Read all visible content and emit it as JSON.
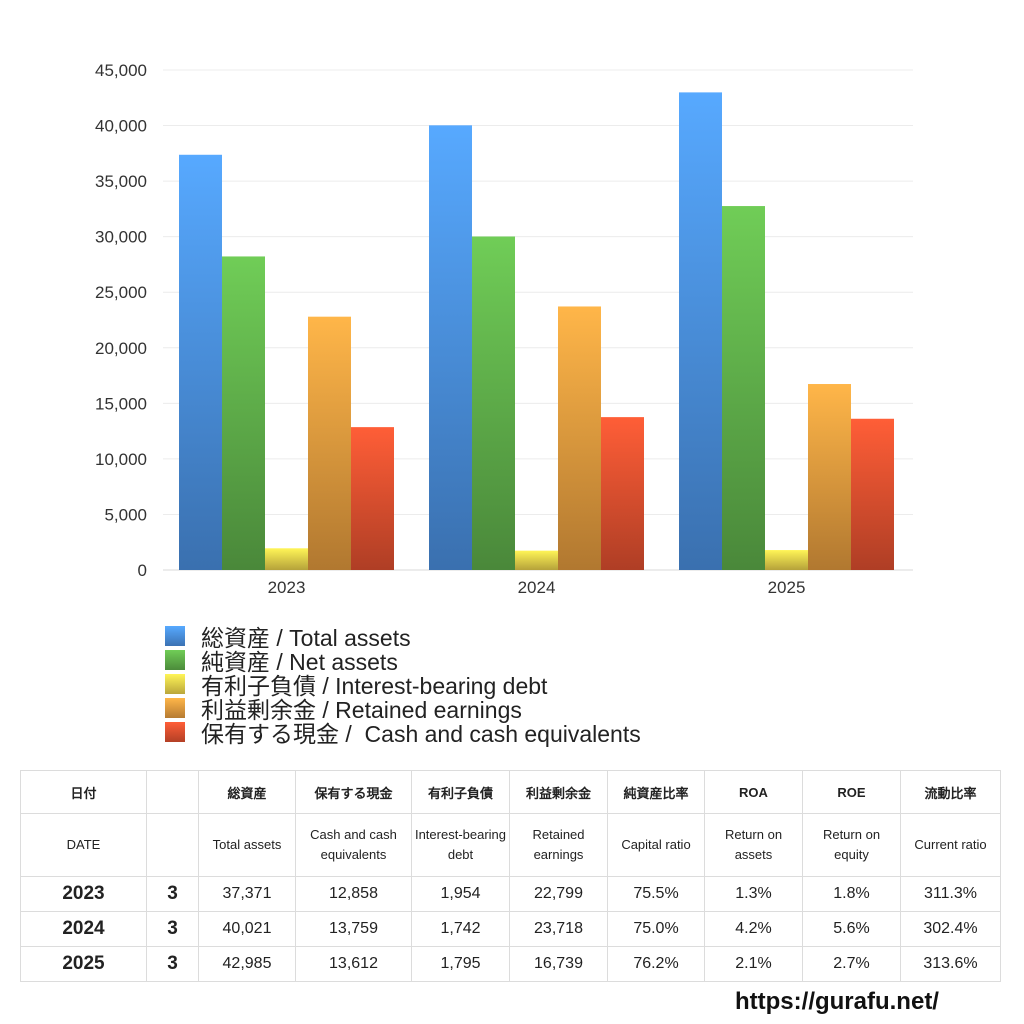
{
  "chart_data": {
    "type": "bar",
    "categories": [
      "2023",
      "2024",
      "2025"
    ],
    "ylim": [
      0,
      45000
    ],
    "yticks": [
      "45,000",
      "40,000",
      "35,000",
      "30,000",
      "25,000",
      "20,000",
      "15,000",
      "10,000",
      "5,000",
      "0"
    ],
    "series": [
      {
        "name": "総資産 / Total assets",
        "color": "#4a8fe0",
        "values": [
          37371,
          40021,
          42985
        ]
      },
      {
        "name": "純資産 / Net assets",
        "color": "#5fae4a",
        "values": [
          28220,
          30015,
          32755
        ]
      },
      {
        "name": "有利子負債 / Interest-bearing debt",
        "color": "#e8d04a",
        "values": [
          1954,
          1742,
          1795
        ]
      },
      {
        "name": "利益剰余金 / Retained earnings",
        "color": "#e39a3e",
        "values": [
          22799,
          23718,
          16739
        ]
      },
      {
        "name": "保有する現金 /  Cash and cash equivalents",
        "color": "#e0502f",
        "values": [
          12858,
          13759,
          13612
        ]
      }
    ],
    "legend_position": "bottom",
    "grid": true
  },
  "table": {
    "header_jp": [
      "日付",
      "",
      "総資産",
      "保有する現金",
      "有利子負債",
      "利益剰余金",
      "純資産比率",
      "ROA",
      "ROE",
      "流動比率"
    ],
    "header_en": [
      "DATE",
      "",
      "Total assets",
      "Cash and cash equivalents",
      "Interest-bearing debt",
      "Retained earnings",
      "Capital ratio",
      "Return on assets",
      "Return on equity",
      "Current ratio"
    ],
    "rows": [
      [
        "2023",
        "3",
        "37,371",
        "12,858",
        "1,954",
        "22,799",
        "75.5%",
        "1.3%",
        "1.8%",
        "311.3%"
      ],
      [
        "2024",
        "3",
        "40,021",
        "13,759",
        "1,742",
        "23,718",
        "75.0%",
        "4.2%",
        "5.6%",
        "302.4%"
      ],
      [
        "2025",
        "3",
        "42,985",
        "13,612",
        "1,795",
        "16,739",
        "76.2%",
        "2.1%",
        "2.7%",
        "313.6%"
      ]
    ]
  },
  "watermark": "https://gurafu.net/"
}
